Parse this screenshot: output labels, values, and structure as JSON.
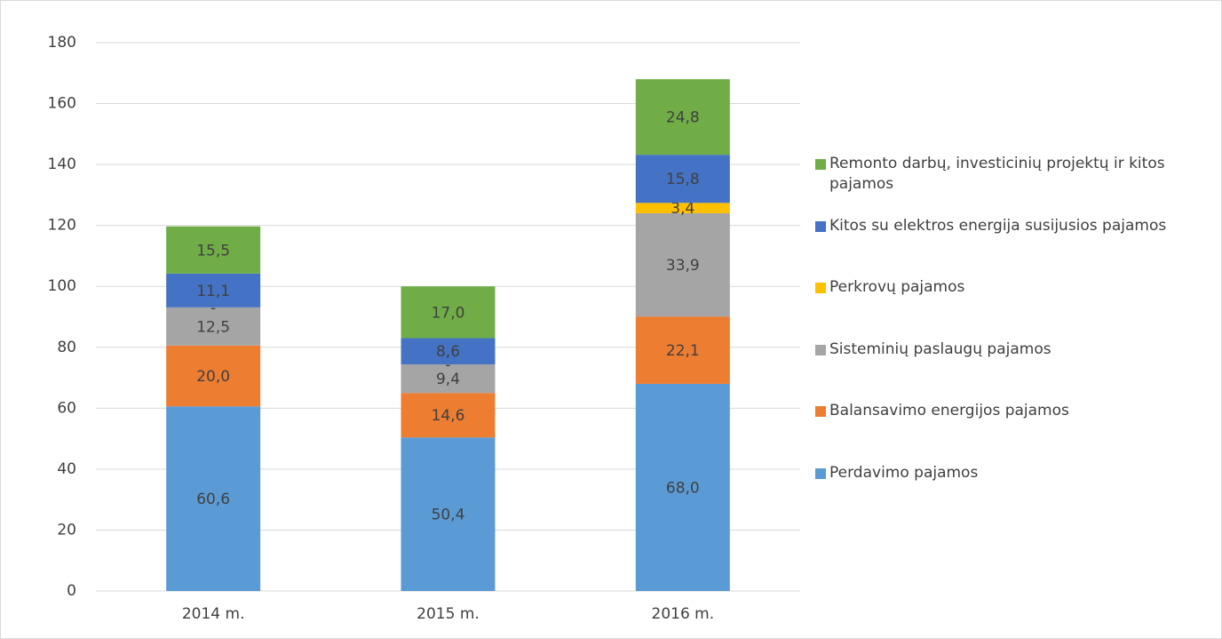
{
  "chart_data": {
    "type": "stacked_bar",
    "categories": [
      "2014 m.",
      "2015 m.",
      "2016 m."
    ],
    "series": [
      {
        "name": "Perdavimo pajamos",
        "color": "#5b9bd5",
        "values": [
          60.6,
          50.4,
          68.0
        ],
        "value_labels": [
          "60,6",
          "50,4",
          "68,0"
        ]
      },
      {
        "name": "Balansavimo energijos pajamos",
        "color": "#ed7d31",
        "values": [
          20.0,
          14.6,
          22.1
        ],
        "value_labels": [
          "20,0",
          "14,6",
          "22,1"
        ]
      },
      {
        "name": "Sisteminių paslaugų pajamos",
        "color": "#a5a5a5",
        "values": [
          12.5,
          9.4,
          33.9
        ],
        "value_labels": [
          "12,5",
          "9,4",
          "33,9"
        ]
      },
      {
        "name": "Perkrovų pajamos",
        "color": "#ffc000",
        "values": [
          0,
          0,
          3.4
        ],
        "value_labels": [
          "-",
          "-",
          "3,4"
        ]
      },
      {
        "name": "Kitos su elektros energija susijusios pajamos",
        "color": "#4472c4",
        "values": [
          11.1,
          8.6,
          15.8
        ],
        "value_labels": [
          "11,1",
          "8,6",
          "15,8"
        ]
      },
      {
        "name": "Remonto darbų, investicinių projektų ir kitos pajamos",
        "color": "#70ad47",
        "values": [
          15.5,
          17.0,
          24.8
        ],
        "value_labels": [
          "15,5",
          "17,0",
          "24,8"
        ]
      }
    ],
    "ylim": [
      0,
      180
    ],
    "yticks": [
      0,
      20,
      40,
      60,
      80,
      100,
      120,
      140,
      160,
      180
    ],
    "grid": true,
    "legend": "right"
  }
}
